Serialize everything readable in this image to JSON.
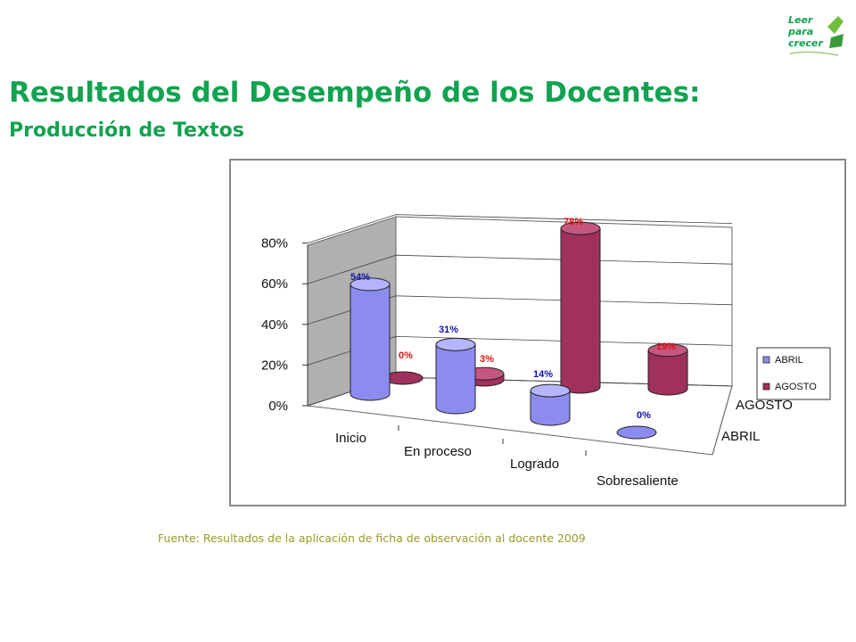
{
  "header": {
    "title": "Resultados del Desempeño de los Docentes:",
    "subtitle": "Producción de Textos"
  },
  "logo": {
    "lines": [
      "Leer",
      "para",
      "crecer"
    ]
  },
  "source": "Fuente: Resultados de la aplicación de ficha de observación al docente 2009",
  "colors": {
    "accent": "#11a350",
    "abril": "#8c8cf0",
    "agosto": "#a0305c",
    "abril_label": "#1010b0",
    "agosto_label": "#e01010"
  },
  "chart_data": {
    "type": "bar",
    "subtype": "3d-cylinder",
    "categories": [
      "Inicio",
      "En proceso",
      "Logrado",
      "Sobresaliente"
    ],
    "series": [
      {
        "name": "ABRIL",
        "values": [
          54,
          31,
          14,
          0
        ],
        "labels": [
          "54%",
          "31%",
          "14%",
          "0%"
        ]
      },
      {
        "name": "AGOSTO",
        "values": [
          0,
          3,
          78,
          19
        ],
        "labels": [
          "0%",
          "3%",
          "78%",
          "19%"
        ]
      }
    ],
    "yticks": [
      "0%",
      "20%",
      "40%",
      "60%",
      "80%"
    ],
    "ylim": [
      0,
      80
    ],
    "depth_labels": [
      "AGOSTO",
      "ABRIL"
    ],
    "legend": {
      "position": "right",
      "entries": [
        "ABRIL",
        "AGOSTO"
      ]
    },
    "grid": true
  }
}
